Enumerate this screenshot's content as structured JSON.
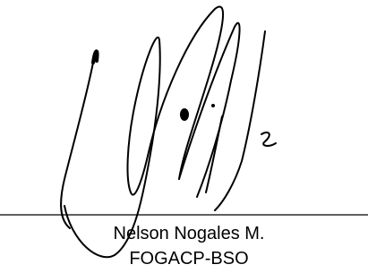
{
  "signature": {
    "name": "Nelson Nogales M.",
    "organization": "FOGACP-BSO"
  }
}
